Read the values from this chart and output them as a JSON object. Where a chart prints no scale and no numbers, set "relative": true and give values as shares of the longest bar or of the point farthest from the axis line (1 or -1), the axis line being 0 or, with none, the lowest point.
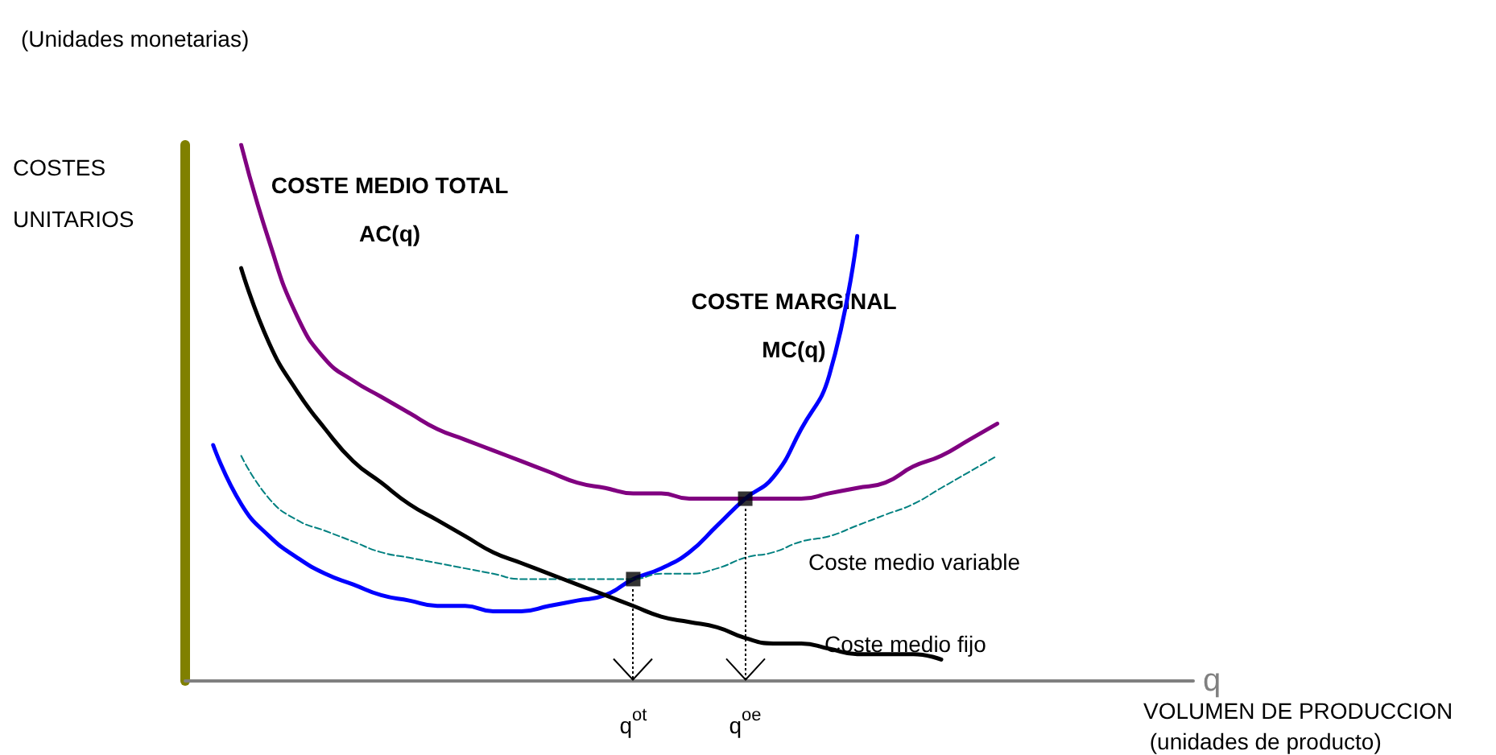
{
  "chart_data": {
    "type": "line",
    "relative": true,
    "title": "(Unidades monetarias)",
    "ylabel": "COSTES\nUNITARIOS",
    "xlabel": "q",
    "annotations": [
      "VOLUMEN DE PRODUCCION\n (unidades de producto)"
    ],
    "categories": [
      null,
      null,
      null,
      null,
      null,
      null,
      null,
      null,
      null,
      null,
      null,
      null,
      null,
      null,
      null,
      null,
      "q$^{ot}$",
      null,
      null,
      null,
      "q$^{oe}$",
      null,
      null,
      null,
      null,
      null,
      null,
      null,
      null,
      null,
      null,
      null,
      null,
      null,
      null,
      null,
      null
    ],
    "marker": "none",
    "series": [
      {
        "name": "COSTE MEDIO TOTAL\nAC(q)",
        "color": "#800080",
        "values": [
          null,
          null,
          1.0,
          0.82,
          0.68,
          0.6,
          0.56,
          0.53,
          0.5,
          0.47,
          0.45,
          0.43,
          0.41,
          0.39,
          0.37,
          0.36,
          0.35,
          0.35,
          0.34,
          0.34,
          0.34,
          0.34,
          0.34,
          0.35,
          0.36,
          0.37,
          0.4,
          0.42,
          0.45,
          0.48,
          null,
          null,
          null,
          null,
          null,
          null,
          null
        ]
      },
      {
        "name": "COSTE MARGINAL\nMC(q)",
        "color": "#0000ff",
        "values": [
          null,
          0.44,
          0.33,
          0.27,
          0.23,
          0.2,
          0.18,
          0.16,
          0.15,
          0.14,
          0.14,
          0.13,
          0.13,
          0.14,
          0.15,
          0.16,
          0.19,
          0.21,
          0.24,
          0.29,
          0.34,
          0.38,
          0.47,
          0.57,
          0.83,
          null,
          null,
          null,
          null,
          null,
          null,
          null,
          null,
          null,
          null,
          null,
          null
        ]
      },
      {
        "name": "Coste medio variable",
        "color": "#008080",
        "line_style": "dashed",
        "values": [
          null,
          null,
          0.42,
          0.34,
          0.3,
          0.28,
          0.26,
          0.24,
          0.23,
          0.22,
          0.21,
          0.2,
          0.19,
          0.19,
          0.19,
          0.19,
          0.19,
          0.2,
          0.2,
          0.21,
          0.23,
          0.24,
          0.26,
          0.27,
          0.29,
          0.31,
          0.33,
          0.36,
          0.39,
          0.42,
          null,
          null,
          null,
          null,
          null,
          null,
          null
        ]
      },
      {
        "name": "Coste medio fijo",
        "color": "#000000",
        "values": [
          null,
          null,
          0.77,
          0.63,
          0.54,
          0.47,
          0.41,
          0.37,
          0.33,
          0.3,
          0.27,
          0.24,
          0.22,
          0.2,
          0.18,
          0.16,
          0.14,
          0.12,
          0.11,
          0.1,
          0.08,
          0.07,
          0.07,
          0.06,
          0.05,
          0.05,
          0.05,
          0.04,
          null,
          null,
          null,
          null,
          null,
          null,
          null,
          null,
          null
        ]
      },
      {
        "type": "scatter",
        "marker": "square",
        "color": "#000000",
        "x": [
          "q$^{ot}$",
          "q$^{oe}$"
        ],
        "values": [
          0.19,
          0.34
        ]
      }
    ]
  }
}
